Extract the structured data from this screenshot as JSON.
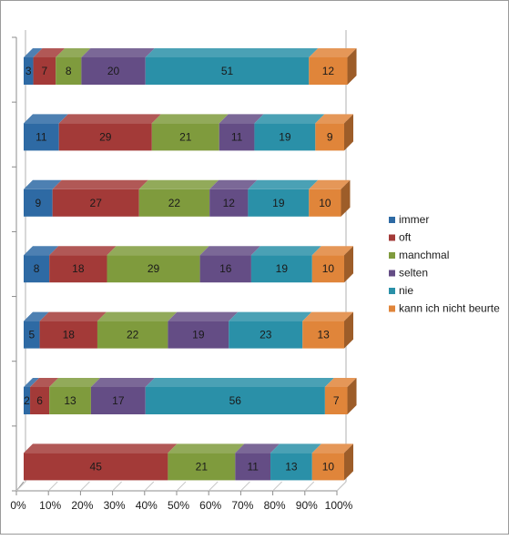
{
  "chart_data": {
    "type": "bar",
    "stacked": "percent",
    "orientation": "horizontal",
    "style": "3d",
    "title": "",
    "xlabel": "",
    "ylabel": "",
    "xlim": [
      0,
      100
    ],
    "x_ticks": [
      "0%",
      "10%",
      "20%",
      "30%",
      "40%",
      "50%",
      "60%",
      "70%",
      "80%",
      "90%",
      "100%"
    ],
    "categories": [
      "",
      "",
      "",
      "",
      "",
      "",
      ""
    ],
    "series": [
      {
        "name": "immer",
        "color": "#2e6aa4",
        "values": [
          3,
          11,
          9,
          8,
          5,
          2,
          0
        ]
      },
      {
        "name": "oft",
        "color": "#a33a38",
        "values": [
          7,
          29,
          27,
          18,
          18,
          6,
          45
        ]
      },
      {
        "name": "manchmal",
        "color": "#7f9b3d",
        "values": [
          8,
          21,
          22,
          29,
          22,
          13,
          21
        ]
      },
      {
        "name": "selten",
        "color": "#644d85",
        "values": [
          20,
          11,
          12,
          16,
          19,
          17,
          11
        ]
      },
      {
        "name": "nie",
        "color": "#2a90a8",
        "values": [
          51,
          19,
          19,
          19,
          23,
          56,
          13
        ]
      },
      {
        "name": "kann ich nicht beurte",
        "color": "#e0853a",
        "values": [
          12,
          9,
          10,
          10,
          13,
          7,
          10
        ]
      }
    ],
    "data_labels": true,
    "legend": "right",
    "grid": false
  }
}
